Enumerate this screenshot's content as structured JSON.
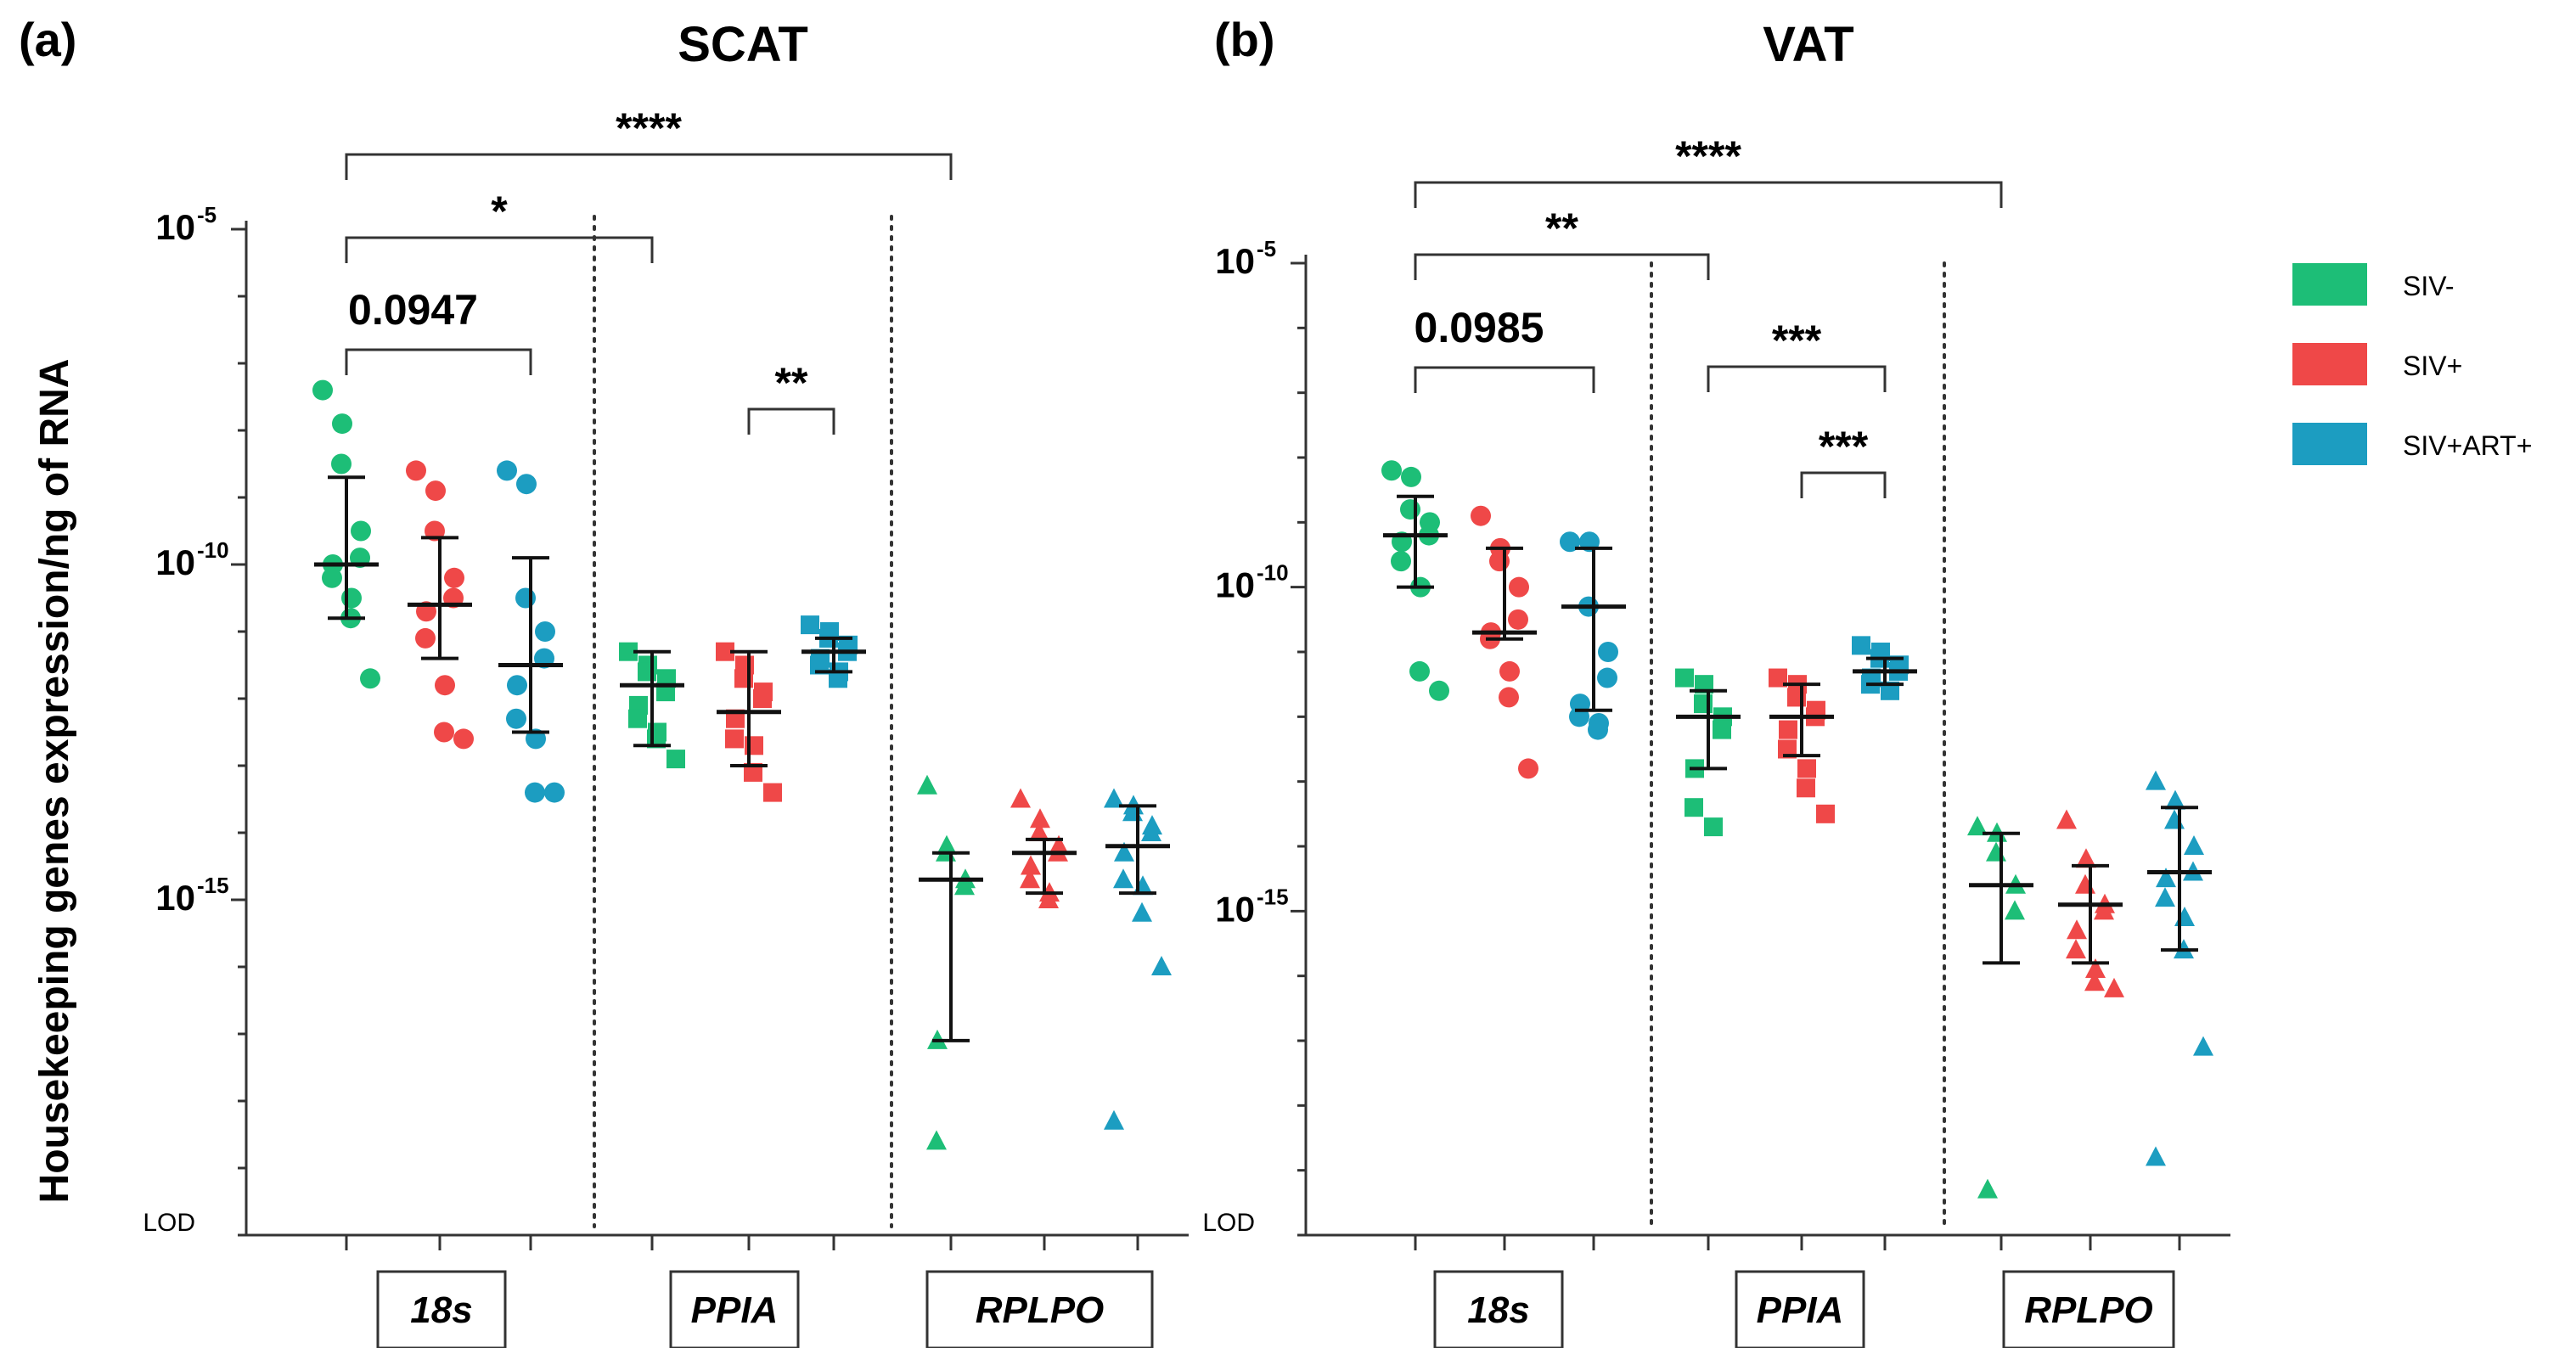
{
  "figure": {
    "y_axis_label": "Housekeeping genes expression/ng of RNA",
    "lod_label": "LOD",
    "tick_base": "10"
  },
  "legend": [
    {
      "label": "SIV-",
      "color": "#1DBE77"
    },
    {
      "label": "SIV+",
      "color": "#EF4848"
    },
    {
      "label": "SIV+ART+",
      "color": "#1C9DC1"
    }
  ],
  "chart_data": [
    {
      "type": "scatter",
      "panel_letter": "(a)",
      "title": "SCAT",
      "yscale": "log10",
      "ylim": [
        -20,
        -5
      ],
      "yticks": [
        -5,
        -10,
        -15
      ],
      "yticklabels": [
        "-5",
        "-10",
        "-15"
      ],
      "genes": [
        {
          "name": "18s",
          "marker": "circle",
          "groups": [
            {
              "group": "SIV-",
              "center": -10.0,
              "low": -10.8,
              "high": -8.7,
              "points": [
                -7.4,
                -7.9,
                -8.5,
                -9.5,
                -9.9,
                -10.0,
                -10.2,
                -10.5,
                -10.8,
                -11.7
              ]
            },
            {
              "group": "SIV+",
              "center": -10.6,
              "low": -11.4,
              "high": -9.6,
              "points": [
                -8.6,
                -8.9,
                -9.5,
                -10.2,
                -10.5,
                -10.7,
                -11.1,
                -11.8,
                -12.5,
                -12.6
              ]
            },
            {
              "group": "SIV+ART+",
              "center": -11.5,
              "low": -12.5,
              "high": -9.9,
              "points": [
                -8.6,
                -8.8,
                -10.5,
                -11.0,
                -11.4,
                -11.8,
                -12.3,
                -12.6,
                -13.4,
                -13.4
              ]
            }
          ]
        },
        {
          "name": "PPIA",
          "marker": "square",
          "groups": [
            {
              "group": "SIV-",
              "center": -11.8,
              "low": -12.7,
              "high": -11.3,
              "points": [
                -11.3,
                -11.5,
                -11.6,
                -11.7,
                -11.9,
                -12.1,
                -12.3,
                -12.5,
                -12.6,
                -12.9
              ]
            },
            {
              "group": "SIV+",
              "center": -12.2,
              "low": -13.0,
              "high": -11.3,
              "points": [
                -11.3,
                -11.5,
                -11.7,
                -11.9,
                -12.0,
                -12.3,
                -12.6,
                -12.7,
                -13.1,
                -13.4
              ]
            },
            {
              "group": "SIV+ART+",
              "center": -11.3,
              "low": -11.6,
              "high": -11.1,
              "points": [
                -10.9,
                -11.0,
                -11.1,
                -11.2,
                -11.3,
                -11.4,
                -11.5,
                -11.6,
                -11.7
              ]
            }
          ]
        },
        {
          "name": "RPLPO",
          "marker": "triangle",
          "groups": [
            {
              "group": "SIV-",
              "center": -14.7,
              "low": -17.1,
              "high": -14.3,
              "points": [
                -13.3,
                -14.2,
                -14.3,
                -14.7,
                -14.8,
                -17.1,
                -18.6
              ]
            },
            {
              "group": "SIV+",
              "center": -14.3,
              "low": -14.9,
              "high": -14.1,
              "points": [
                -13.5,
                -13.8,
                -14.0,
                -14.2,
                -14.3,
                -14.5,
                -14.7,
                -14.9,
                -15.0
              ]
            },
            {
              "group": "SIV+ART+",
              "center": -14.2,
              "low": -14.9,
              "high": -13.6,
              "points": [
                -13.5,
                -13.6,
                -13.7,
                -13.9,
                -14.0,
                -14.3,
                -14.7,
                -14.8,
                -15.2,
                -16.0,
                -18.3
              ]
            }
          ]
        }
      ],
      "comparisons": [
        {
          "label": "****",
          "from": "18s:SIV-",
          "to": "RPLPO:SIV-"
        },
        {
          "label": "*",
          "from": "18s:SIV-",
          "to": "PPIA:SIV-"
        },
        {
          "label": "0.0947",
          "from": "18s:SIV-",
          "to": "18s:SIV+ART+"
        },
        {
          "label": "**",
          "from": "PPIA:SIV+",
          "to": "PPIA:SIV+ART+"
        }
      ]
    },
    {
      "type": "scatter",
      "panel_letter": "(b)",
      "title": "VAT",
      "yscale": "log10",
      "ylim": [
        -20,
        -5
      ],
      "yticks": [
        -5,
        -10,
        -15
      ],
      "yticklabels": [
        "-5",
        "-10",
        "-15"
      ],
      "genes": [
        {
          "name": "18s",
          "marker": "circle",
          "groups": [
            {
              "group": "SIV-",
              "center": -9.2,
              "low": -10.0,
              "high": -8.6,
              "points": [
                -8.2,
                -8.3,
                -8.8,
                -9.0,
                -9.2,
                -9.3,
                -9.6,
                -10.0,
                -11.3,
                -11.6
              ]
            },
            {
              "group": "SIV+",
              "center": -10.7,
              "low": -10.8,
              "high": -9.4,
              "points": [
                -8.9,
                -9.4,
                -9.6,
                -10.0,
                -10.5,
                -10.7,
                -10.8,
                -11.3,
                -11.7,
                -12.8
              ]
            },
            {
              "group": "SIV+ART+",
              "center": -10.3,
              "low": -11.9,
              "high": -9.4,
              "points": [
                -9.3,
                -9.3,
                -10.3,
                -11.0,
                -11.4,
                -11.8,
                -12.0,
                -12.1,
                -12.2
              ]
            }
          ]
        },
        {
          "name": "PPIA",
          "marker": "square",
          "groups": [
            {
              "group": "SIV-",
              "center": -12.0,
              "low": -12.8,
              "high": -11.6,
              "points": [
                -11.4,
                -11.5,
                -11.8,
                -12.0,
                -12.2,
                -12.8,
                -13.4,
                -13.7
              ]
            },
            {
              "group": "SIV+",
              "center": -12.0,
              "low": -12.6,
              "high": -11.5,
              "points": [
                -11.4,
                -11.5,
                -11.7,
                -11.9,
                -12.0,
                -12.2,
                -12.5,
                -12.8,
                -13.1,
                -13.5
              ]
            },
            {
              "group": "SIV+ART+",
              "center": -11.3,
              "low": -11.5,
              "high": -11.1,
              "points": [
                -10.9,
                -11.0,
                -11.1,
                -11.2,
                -11.3,
                -11.4,
                -11.5,
                -11.6
              ]
            }
          ]
        },
        {
          "name": "RPLPO",
          "marker": "triangle",
          "groups": [
            {
              "group": "SIV-",
              "center": -14.6,
              "low": -15.8,
              "high": -13.8,
              "points": [
                -13.7,
                -13.8,
                -14.1,
                -14.6,
                -15.0,
                -19.3
              ]
            },
            {
              "group": "SIV+",
              "center": -14.9,
              "low": -15.8,
              "high": -14.3,
              "points": [
                -13.6,
                -14.2,
                -14.6,
                -14.9,
                -15.0,
                -15.3,
                -15.6,
                -15.9,
                -16.1,
                -16.2
              ]
            },
            {
              "group": "SIV+ART+",
              "center": -14.4,
              "low": -15.6,
              "high": -13.4,
              "points": [
                -13.0,
                -13.3,
                -13.6,
                -14.0,
                -14.4,
                -14.5,
                -14.8,
                -15.1,
                -15.6,
                -17.1,
                -18.8
              ]
            }
          ]
        }
      ],
      "comparisons": [
        {
          "label": "****",
          "from": "18s:SIV-",
          "to": "RPLPO:SIV-"
        },
        {
          "label": "**",
          "from": "18s:SIV-",
          "to": "PPIA:SIV-"
        },
        {
          "label": "0.0985",
          "from": "18s:SIV-",
          "to": "18s:SIV+ART+"
        },
        {
          "label": "***",
          "from": "PPIA:SIV-",
          "to": "PPIA:SIV+ART+"
        },
        {
          "label": "***",
          "from": "PPIA:SIV+",
          "to": "PPIA:SIV+ART+"
        }
      ]
    }
  ]
}
